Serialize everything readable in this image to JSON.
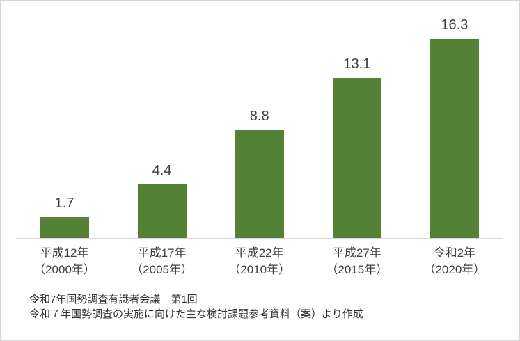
{
  "window": {
    "background_color": "#ffffff",
    "border_color": "#d6d6d6"
  },
  "chart_data": {
    "type": "bar",
    "title": "",
    "xlabel": "",
    "ylabel": "",
    "categories": [
      "平成12年（2000年）",
      "平成17年（2005年）",
      "平成22年（2010年）",
      "平成27年（2015年）",
      "令和2年（2020年）"
    ],
    "category_lines": [
      {
        "era": "平成12年",
        "year": "（2000年）"
      },
      {
        "era": "平成17年",
        "year": "（2005年）"
      },
      {
        "era": "平成22年",
        "year": "（2010年）"
      },
      {
        "era": "平成27年",
        "year": "（2015年）"
      },
      {
        "era": "令和2年",
        "year": "（2020年）"
      }
    ],
    "values": [
      1.7,
      4.4,
      8.8,
      13.1,
      16.3
    ],
    "value_labels": [
      "1.7",
      "4.4",
      "8.8",
      "13.1",
      "16.3"
    ],
    "bar_color": "#538135",
    "axis_line_color": "#d9d9d9",
    "text_color": "#404040",
    "gridlines": false,
    "y_axis_visible": false,
    "legend": "none"
  },
  "footer": {
    "line1": "令和7年国勢調査有識者会議　第1回",
    "line2": "令和７年国勢調査の実施に向けた主な検討課題参考資料（案）より作成"
  }
}
